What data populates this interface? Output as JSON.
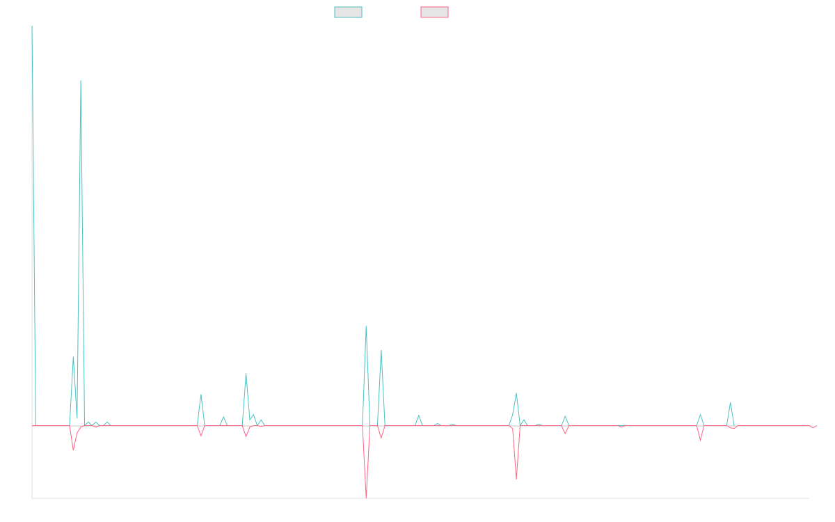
{
  "chart_data": {
    "type": "line",
    "title": "",
    "xlabel": "",
    "ylabel": "",
    "ylim": [
      -1.0,
      5.5
    ],
    "grid": false,
    "legend_placement": "top",
    "series": [
      {
        "color": "#4bc0c0",
        "points": [
          [
            0,
            5.5
          ],
          [
            1,
            0
          ],
          [
            10,
            0
          ],
          [
            11,
            0.95
          ],
          [
            12,
            0.1
          ],
          [
            13,
            4.75
          ],
          [
            14,
            0
          ],
          [
            15,
            0.05
          ],
          [
            16,
            0
          ],
          [
            17,
            0.05
          ],
          [
            18,
            0
          ],
          [
            19,
            0
          ],
          [
            20,
            0.05
          ],
          [
            21,
            0
          ],
          [
            44,
            0
          ],
          [
            45,
            0.43
          ],
          [
            46,
            0
          ],
          [
            50,
            0
          ],
          [
            51,
            0.12
          ],
          [
            52,
            0
          ],
          [
            56,
            0
          ],
          [
            57,
            0.72
          ],
          [
            58,
            0.08
          ],
          [
            59,
            0.15
          ],
          [
            60,
            0
          ],
          [
            61,
            0.08
          ],
          [
            62,
            0
          ],
          [
            88,
            0
          ],
          [
            89,
            1.37
          ],
          [
            90,
            0
          ],
          [
            92,
            0
          ],
          [
            93,
            1.04
          ],
          [
            94,
            0
          ],
          [
            102,
            0
          ],
          [
            103,
            0.14
          ],
          [
            104,
            0
          ],
          [
            107,
            0
          ],
          [
            108,
            0.03
          ],
          [
            109,
            0
          ],
          [
            111,
            0
          ],
          [
            112,
            0.02
          ],
          [
            113,
            0
          ],
          [
            127,
            0
          ],
          [
            128,
            0.15
          ],
          [
            129,
            0.45
          ],
          [
            130,
            0
          ],
          [
            131,
            0.08
          ],
          [
            132,
            0
          ],
          [
            134,
            0
          ],
          [
            135,
            0.02
          ],
          [
            136,
            0
          ],
          [
            141,
            0
          ],
          [
            142,
            0.13
          ],
          [
            143,
            0
          ],
          [
            177,
            0
          ],
          [
            178,
            0.15
          ],
          [
            179,
            0
          ],
          [
            185,
            0
          ],
          [
            186,
            0.32
          ],
          [
            187,
            0
          ]
        ]
      },
      {
        "color": "#ff6384",
        "points": [
          [
            0,
            0
          ],
          [
            10,
            0
          ],
          [
            11,
            -0.34
          ],
          [
            12,
            -0.1
          ],
          [
            13,
            -0.02
          ],
          [
            14,
            0
          ],
          [
            16,
            0
          ],
          [
            17,
            -0.02
          ],
          [
            18,
            0
          ],
          [
            44,
            0
          ],
          [
            45,
            -0.14
          ],
          [
            46,
            0
          ],
          [
            56,
            0
          ],
          [
            57,
            -0.15
          ],
          [
            58,
            -0.02
          ],
          [
            59,
            0
          ],
          [
            60,
            0
          ],
          [
            61,
            -0.01
          ],
          [
            62,
            0
          ],
          [
            88,
            0
          ],
          [
            89,
            -1.0
          ],
          [
            90,
            0
          ],
          [
            92,
            0
          ],
          [
            93,
            -0.17
          ],
          [
            94,
            0
          ],
          [
            127,
            0
          ],
          [
            128,
            -0.04
          ],
          [
            129,
            -0.74
          ],
          [
            130,
            0
          ],
          [
            141,
            0
          ],
          [
            142,
            -0.11
          ],
          [
            143,
            0
          ],
          [
            156,
            0
          ],
          [
            157,
            -0.02
          ],
          [
            158,
            0
          ],
          [
            177,
            0
          ],
          [
            178,
            -0.2
          ],
          [
            179,
            0
          ],
          [
            185,
            0
          ],
          [
            186,
            -0.03
          ],
          [
            187,
            -0.04
          ],
          [
            188,
            0
          ],
          [
            207,
            0
          ],
          [
            208,
            -0.03
          ],
          [
            209,
            0
          ]
        ]
      }
    ],
    "legend": [
      {
        "color": "#4bc0c0"
      },
      {
        "color": "#ff6384"
      }
    ]
  }
}
